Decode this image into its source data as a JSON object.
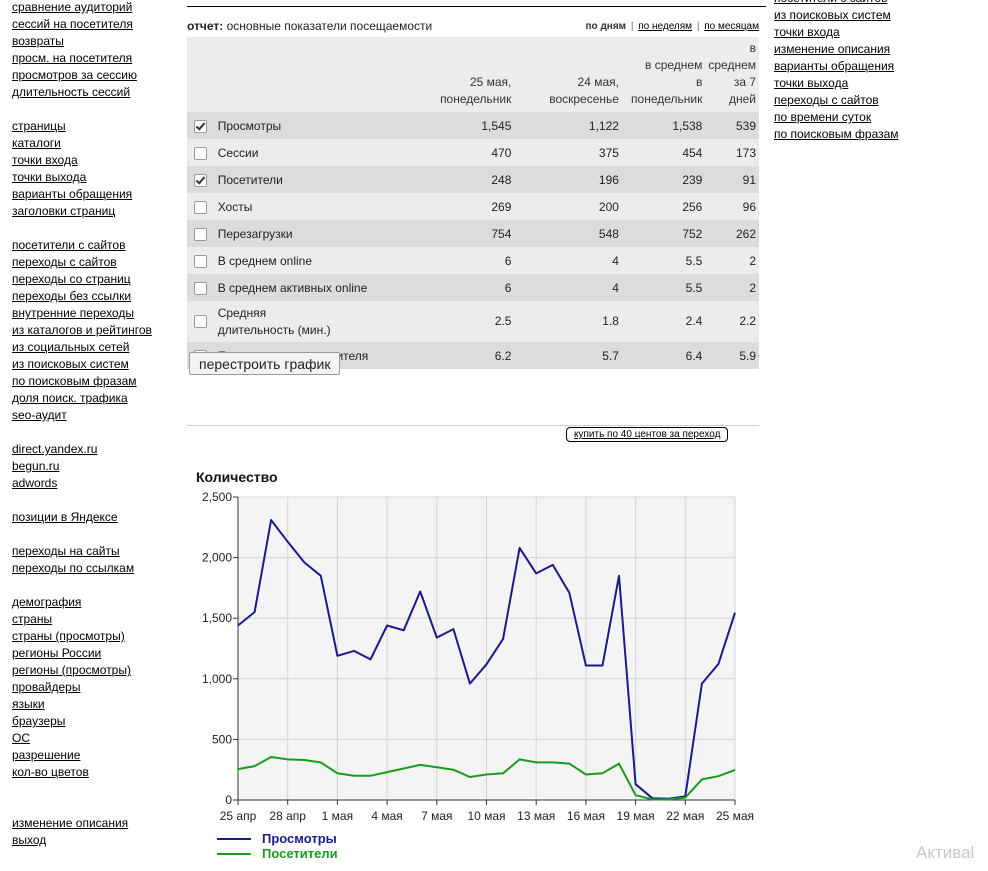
{
  "left_nav": {
    "groups": [
      [
        "сравнение аудиторий",
        "сессий на посетителя",
        "возвраты",
        "просм. на посетителя",
        "просмотров за сессию",
        "длительность сессий"
      ],
      [
        "страницы",
        "каталоги",
        "точки входа",
        "точки выхода",
        "варианты обращения",
        "заголовки страниц"
      ],
      [
        "посетители с сайтов",
        "переходы с сайтов",
        "переходы со страниц",
        "переходы без ссылки",
        "внутренние переходы",
        "из каталогов и рейтингов",
        "из социальных сетей",
        "из поисковых систем",
        "по поисковым фразам",
        "доля поиск. трафика",
        "seo-аудит"
      ],
      [
        "direct.yandex.ru",
        "begun.ru",
        "adwords"
      ],
      [
        "позиции в Яндексе"
      ],
      [
        "переходы на сайты",
        "переходы по ссылкам"
      ],
      [
        "демография",
        "страны",
        "страны (просмотры)",
        "регионы России",
        "регионы (просмотры)",
        "провайдеры",
        "языки",
        "браузеры",
        "ОС",
        "разрешение",
        "кол-во цветов"
      ],
      [
        "изменение описания",
        "выход"
      ]
    ]
  },
  "right_nav": {
    "items": [
      "посетители с сайтов",
      "из поисковых систем",
      "точки входа",
      "изменение описания",
      "варианты обращения",
      "точки выхода",
      "переходы с сайтов",
      "по времени суток",
      "по поисковым фразам"
    ]
  },
  "report": {
    "label": "отчет:",
    "title": "основные показатели посещаемости",
    "period": {
      "day": "по дням",
      "week": "по неделям",
      "month": "по месяцам",
      "sep": "|"
    }
  },
  "table": {
    "headers": [
      [
        "25 мая,",
        "понедельник"
      ],
      [
        "24 мая,",
        "воскресенье"
      ],
      [
        "в среднем",
        "в",
        "понедельник"
      ],
      [
        "в",
        "среднем",
        "за 7 дней"
      ]
    ],
    "rows": [
      {
        "name": "Просмотры",
        "checked": true,
        "values": [
          "1,545",
          "1,122",
          "1,538",
          "539"
        ]
      },
      {
        "name": "Сессии",
        "checked": false,
        "values": [
          "470",
          "375",
          "454",
          "173"
        ]
      },
      {
        "name": "Посетители",
        "checked": true,
        "values": [
          "248",
          "196",
          "239",
          "91"
        ]
      },
      {
        "name": "Хосты",
        "checked": false,
        "values": [
          "269",
          "200",
          "256",
          "96"
        ]
      },
      {
        "name": "Перезагрузки",
        "checked": false,
        "values": [
          "754",
          "548",
          "752",
          "262"
        ]
      },
      {
        "name": "В среднем online",
        "checked": false,
        "values": [
          "6",
          "4",
          "5.5",
          "2"
        ]
      },
      {
        "name": "В среднем активных online",
        "checked": false,
        "values": [
          "6",
          "4",
          "5.5",
          "2"
        ]
      },
      {
        "name": "Средняя длительность (мин.)",
        "checked": false,
        "values": [
          "2.5",
          "1.8",
          "2.4",
          "2.2"
        ]
      },
      {
        "name": "Просмотров на посетителя",
        "checked": false,
        "values": [
          "6.2",
          "5.7",
          "6.4",
          "5.9"
        ]
      }
    ]
  },
  "buttons": {
    "rebuild": "перестроить график",
    "buy": "купить по 40 центов за переход"
  },
  "chart_data": {
    "type": "line",
    "title": "Количество",
    "ylim": [
      0,
      2500
    ],
    "yticks": [
      "0",
      "500",
      "1,000",
      "1,500",
      "2,000",
      "2,500"
    ],
    "xticks": [
      "25 апр",
      "28 апр",
      "1 мая",
      "4 мая",
      "7 мая",
      "10 мая",
      "13 мая",
      "16 мая",
      "19 мая",
      "22 мая",
      "25 мая"
    ],
    "x": [
      "25 апр",
      "26 апр",
      "27 апр",
      "28 апр",
      "29 апр",
      "30 апр",
      "1 мая",
      "2 мая",
      "3 мая",
      "4 мая",
      "5 мая",
      "6 мая",
      "7 мая",
      "8 мая",
      "9 мая",
      "10 мая",
      "11 мая",
      "12 мая",
      "13 мая",
      "14 мая",
      "15 мая",
      "16 мая",
      "17 мая",
      "18 мая",
      "19 мая",
      "20 мая",
      "21 мая",
      "22 мая",
      "23 мая",
      "24 мая",
      "25 мая"
    ],
    "series": [
      {
        "name": "Просмотры",
        "color": "#1a1a8c",
        "values": [
          1440,
          1550,
          2310,
          2130,
          1960,
          1850,
          1190,
          1230,
          1160,
          1440,
          1400,
          1720,
          1340,
          1410,
          960,
          1120,
          1330,
          2080,
          1870,
          1940,
          1710,
          1110,
          1110,
          1850,
          130,
          15,
          10,
          30,
          960,
          1122,
          1545
        ]
      },
      {
        "name": "Посетители",
        "color": "#1b9a1b",
        "values": [
          255,
          280,
          355,
          335,
          330,
          310,
          220,
          200,
          200,
          230,
          260,
          290,
          270,
          250,
          190,
          210,
          220,
          335,
          310,
          310,
          300,
          210,
          220,
          300,
          40,
          5,
          5,
          20,
          170,
          196,
          248
        ]
      }
    ],
    "grid": true,
    "legend": "bottom-left"
  },
  "watermark": "Активаl"
}
